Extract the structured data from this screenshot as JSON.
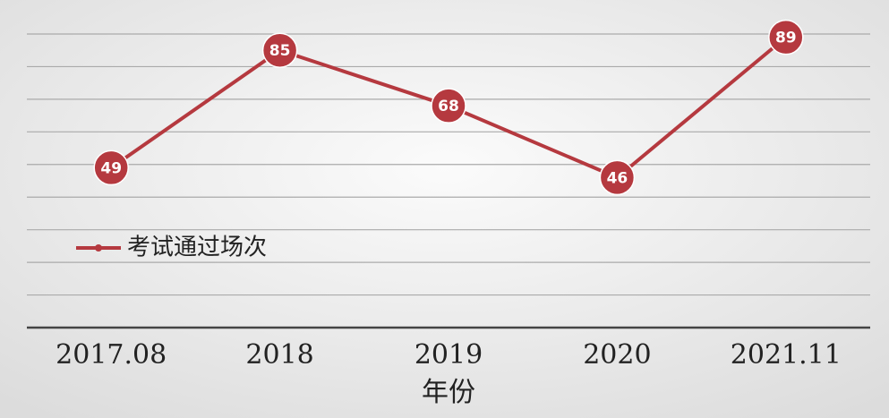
{
  "chart_data": {
    "type": "line",
    "x_label": "年份",
    "categories": [
      "2017.08",
      "2018",
      "2019",
      "2020",
      "2021.11"
    ],
    "series": [
      {
        "name": "考试通过场次",
        "color": "#b5393f",
        "values": [
          49,
          85,
          68,
          46,
          89
        ]
      }
    ],
    "ylim": [
      0,
      90
    ],
    "yticks": [
      0,
      10,
      20,
      30,
      40,
      50,
      60,
      70,
      80,
      90
    ],
    "grid": true,
    "legend": "left"
  }
}
